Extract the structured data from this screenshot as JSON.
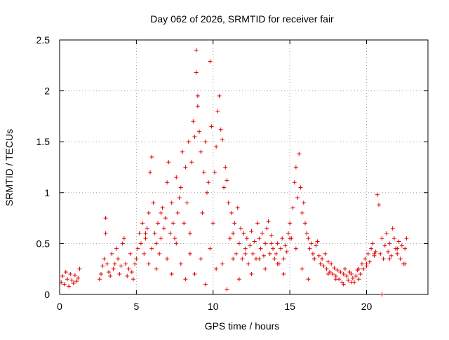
{
  "chart_data": {
    "type": "scatter",
    "title": "Day 062 of 2026, SRMTID for receiver fair",
    "xlabel": "GPS time / hours",
    "ylabel": "SRMTID / TECUs",
    "xlim": [
      0,
      24
    ],
    "ylim": [
      0,
      2.5
    ],
    "grid": true,
    "marker": "+",
    "color": "#e00000",
    "x_ticks": [
      0,
      5,
      10,
      15,
      20
    ],
    "y_ticks": [
      0,
      0.5,
      1,
      1.5,
      2,
      2.5
    ],
    "x_tick_labels": [
      "0",
      "5",
      "10",
      "15",
      "20"
    ],
    "y_tick_labels": [
      "0",
      "0.5",
      "1",
      "1.5",
      "2",
      "2.5"
    ],
    "series": [
      {
        "name": "SRMTID",
        "x": [
          0.1,
          0.2,
          0.3,
          0.4,
          0.5,
          0.6,
          0.7,
          0.8,
          0.9,
          1.0,
          1.1,
          1.2,
          1.3,
          2.6,
          2.7,
          2.8,
          2.9,
          3.0,
          3.0,
          3.1,
          3.2,
          3.3,
          3.4,
          3.5,
          3.6,
          3.7,
          3.8,
          3.9,
          4.0,
          4.1,
          4.2,
          4.3,
          4.4,
          4.5,
          4.6,
          4.7,
          4.8,
          4.9,
          5.0,
          5.1,
          5.2,
          5.3,
          5.4,
          5.5,
          5.6,
          5.7,
          5.8,
          5.9,
          6.0,
          6.1,
          6.2,
          6.3,
          6.4,
          6.5,
          6.6,
          6.7,
          6.8,
          6.9,
          7.0,
          7.1,
          7.2,
          7.3,
          7.4,
          7.5,
          7.6,
          7.7,
          7.8,
          7.9,
          8.0,
          8.1,
          8.2,
          8.3,
          8.4,
          8.5,
          8.6,
          8.7,
          8.8,
          8.9,
          8.9,
          9.0,
          9.0,
          9.1,
          9.2,
          9.3,
          9.4,
          9.5,
          9.6,
          9.7,
          9.8,
          9.9,
          10.0,
          10.1,
          10.2,
          10.3,
          10.4,
          10.5,
          10.6,
          10.7,
          10.8,
          10.9,
          11.0,
          11.1,
          11.2,
          11.3,
          11.4,
          11.5,
          11.6,
          11.7,
          11.8,
          11.9,
          12.0,
          12.1,
          12.2,
          12.3,
          12.4,
          12.5,
          12.6,
          12.7,
          12.8,
          12.9,
          13.0,
          13.1,
          13.2,
          13.3,
          13.4,
          13.5,
          13.6,
          13.7,
          13.8,
          13.9,
          14.0,
          14.1,
          14.2,
          14.3,
          14.4,
          14.5,
          14.6,
          14.7,
          14.8,
          14.9,
          15.0,
          15.1,
          15.2,
          15.3,
          15.4,
          15.5,
          15.6,
          15.7,
          15.8,
          15.9,
          16.0,
          16.1,
          16.2,
          16.3,
          16.4,
          16.5,
          16.6,
          16.7,
          16.8,
          16.9,
          17.0,
          17.1,
          17.2,
          17.3,
          17.4,
          17.5,
          17.6,
          17.7,
          17.8,
          17.9,
          18.0,
          18.1,
          18.2,
          18.3,
          18.4,
          18.5,
          18.6,
          18.7,
          18.8,
          18.9,
          19.0,
          19.1,
          19.2,
          19.3,
          19.4,
          19.5,
          19.6,
          19.7,
          19.8,
          19.9,
          20.0,
          20.1,
          20.2,
          20.3,
          20.4,
          20.5,
          20.6,
          20.7,
          20.8,
          20.9,
          21.0,
          21.1,
          21.2,
          21.3,
          21.4,
          21.5,
          21.6,
          21.7,
          21.8,
          21.9,
          22.0,
          22.1,
          22.2,
          22.3,
          22.4,
          22.5,
          22.6,
          5.6,
          5.8,
          6.0,
          6.3,
          6.6,
          7.0,
          7.3,
          7.6,
          7.9,
          8.2,
          8.5,
          8.8,
          9.2,
          9.5,
          9.8,
          10.2,
          10.6,
          10.9,
          11.3,
          11.7,
          12.1,
          12.5,
          13.0,
          13.4,
          13.8,
          14.2,
          14.6,
          15.0,
          15.4,
          15.8,
          16.2,
          16.6,
          17.0,
          17.5,
          18.0,
          18.5,
          19.0,
          19.5,
          20.0,
          20.5,
          21.0,
          21.5,
          22.0,
          22.5
        ],
        "y": [
          0.12,
          0.18,
          0.1,
          0.22,
          0.15,
          0.08,
          0.2,
          0.14,
          0.11,
          0.19,
          0.13,
          0.16,
          0.25,
          0.15,
          0.2,
          0.28,
          0.35,
          0.6,
          0.75,
          0.3,
          0.22,
          0.18,
          0.4,
          0.25,
          0.3,
          0.45,
          0.35,
          0.2,
          0.28,
          0.5,
          0.55,
          0.3,
          0.18,
          0.25,
          0.4,
          0.22,
          0.15,
          0.3,
          0.35,
          0.45,
          0.6,
          0.5,
          0.7,
          0.4,
          0.55,
          0.65,
          0.8,
          1.2,
          1.35,
          0.9,
          0.6,
          0.5,
          0.7,
          0.4,
          0.55,
          0.85,
          0.65,
          0.75,
          1.1,
          1.3,
          0.6,
          0.9,
          0.7,
          0.55,
          1.15,
          0.8,
          0.95,
          1.05,
          1.4,
          0.7,
          1.25,
          0.9,
          1.5,
          0.6,
          1.3,
          1.7,
          1.55,
          2.4,
          2.18,
          1.85,
          1.95,
          1.6,
          1.4,
          0.8,
          1.2,
          1.5,
          1.0,
          1.1,
          2.29,
          1.65,
          0.7,
          1.2,
          1.45,
          1.8,
          1.95,
          1.62,
          1.52,
          1.05,
          1.25,
          1.12,
          0.9,
          0.55,
          0.8,
          0.6,
          0.7,
          0.4,
          0.85,
          0.5,
          0.65,
          0.35,
          0.6,
          0.45,
          0.55,
          0.3,
          0.48,
          0.62,
          0.4,
          0.52,
          0.35,
          0.7,
          0.55,
          0.45,
          0.6,
          0.38,
          0.5,
          0.65,
          0.72,
          0.4,
          0.58,
          0.45,
          0.35,
          0.4,
          0.5,
          0.3,
          0.45,
          0.55,
          0.35,
          0.48,
          0.42,
          0.6,
          0.7,
          0.55,
          0.85,
          1.1,
          1.25,
          0.95,
          1.38,
          1.05,
          0.8,
          0.9,
          0.7,
          0.6,
          0.55,
          0.45,
          0.5,
          0.4,
          0.35,
          0.48,
          0.52,
          0.38,
          0.3,
          0.35,
          0.28,
          0.4,
          0.25,
          0.32,
          0.22,
          0.3,
          0.2,
          0.26,
          0.18,
          0.24,
          0.15,
          0.22,
          0.12,
          0.2,
          0.25,
          0.18,
          0.14,
          0.22,
          0.2,
          0.16,
          0.12,
          0.18,
          0.24,
          0.15,
          0.2,
          0.3,
          0.25,
          0.35,
          0.28,
          0.4,
          0.32,
          0.45,
          0.5,
          0.38,
          0.42,
          0.98,
          0.88,
          0.4,
          0.55,
          0.35,
          0.48,
          0.6,
          0.42,
          0.5,
          0.38,
          0.65,
          0.55,
          0.45,
          0.4,
          0.52,
          0.35,
          0.48,
          0.3,
          0.45,
          0.55,
          0.6,
          0.3,
          0.45,
          0.25,
          0.8,
          0.35,
          0.2,
          0.5,
          0.3,
          0.15,
          0.4,
          0.2,
          0.35,
          0.1,
          0.45,
          0.25,
          0.3,
          0.05,
          0.35,
          0.15,
          0.4,
          0.2,
          0.35,
          0.25,
          0.5,
          0.3,
          0.2,
          0.55,
          0.45,
          0.25,
          0.15,
          0.35,
          0.3,
          0.2,
          0.15,
          0.1,
          0.12,
          0.25,
          0.3,
          0.4,
          0.0,
          0.35,
          0.45,
          0.3
        ]
      }
    ]
  }
}
